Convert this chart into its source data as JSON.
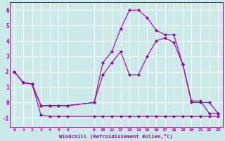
{
  "background_color": "#cce8e8",
  "grid_color": "#ffffff",
  "line_color": "#990099",
  "xlabel": "Windchill (Refroidissement éolien,°C)",
  "xlim": [
    -0.5,
    23.5
  ],
  "ylim": [
    -1.6,
    6.5
  ],
  "xticks": [
    0,
    1,
    2,
    3,
    4,
    5,
    6,
    9,
    10,
    11,
    12,
    13,
    14,
    15,
    16,
    17,
    18,
    19,
    20,
    21,
    22,
    23
  ],
  "yticks": [
    -1,
    0,
    1,
    2,
    3,
    4,
    5,
    6
  ],
  "line1_x": [
    0,
    1,
    2,
    3,
    4,
    5,
    6,
    9,
    10,
    11,
    12,
    13,
    14,
    15,
    16,
    17,
    18,
    19,
    20,
    21,
    22,
    23
  ],
  "line1_y": [
    2,
    1.3,
    1.2,
    -0.8,
    -0.9,
    -0.9,
    -0.9,
    -0.9,
    -0.9,
    -0.9,
    -0.9,
    -0.9,
    -0.9,
    -0.9,
    -0.9,
    -0.9,
    -0.9,
    -0.9,
    -0.9,
    -0.9,
    -0.9,
    -0.9
  ],
  "line2_x": [
    0,
    1,
    2,
    3,
    4,
    5,
    6,
    9,
    10,
    11,
    12,
    13,
    14,
    15,
    16,
    17,
    18,
    19,
    20,
    21,
    22,
    23
  ],
  "line2_y": [
    2,
    1.3,
    1.2,
    -0.2,
    -0.2,
    -0.2,
    -0.2,
    0.0,
    2.6,
    3.3,
    4.8,
    6.0,
    6.0,
    5.5,
    4.7,
    4.4,
    4.4,
    2.5,
    0.1,
    0.1,
    -0.7,
    -0.7
  ],
  "line3_x": [
    0,
    1,
    2,
    3,
    4,
    5,
    6,
    9,
    10,
    11,
    12,
    13,
    14,
    15,
    16,
    17,
    18,
    19,
    20,
    21,
    22,
    23
  ],
  "line3_y": [
    2,
    1.3,
    1.2,
    -0.2,
    -0.2,
    -0.2,
    -0.2,
    0.0,
    1.8,
    2.6,
    3.3,
    1.8,
    1.8,
    3.0,
    4.0,
    4.2,
    3.9,
    2.5,
    0.0,
    0.0,
    0.0,
    -0.7
  ]
}
